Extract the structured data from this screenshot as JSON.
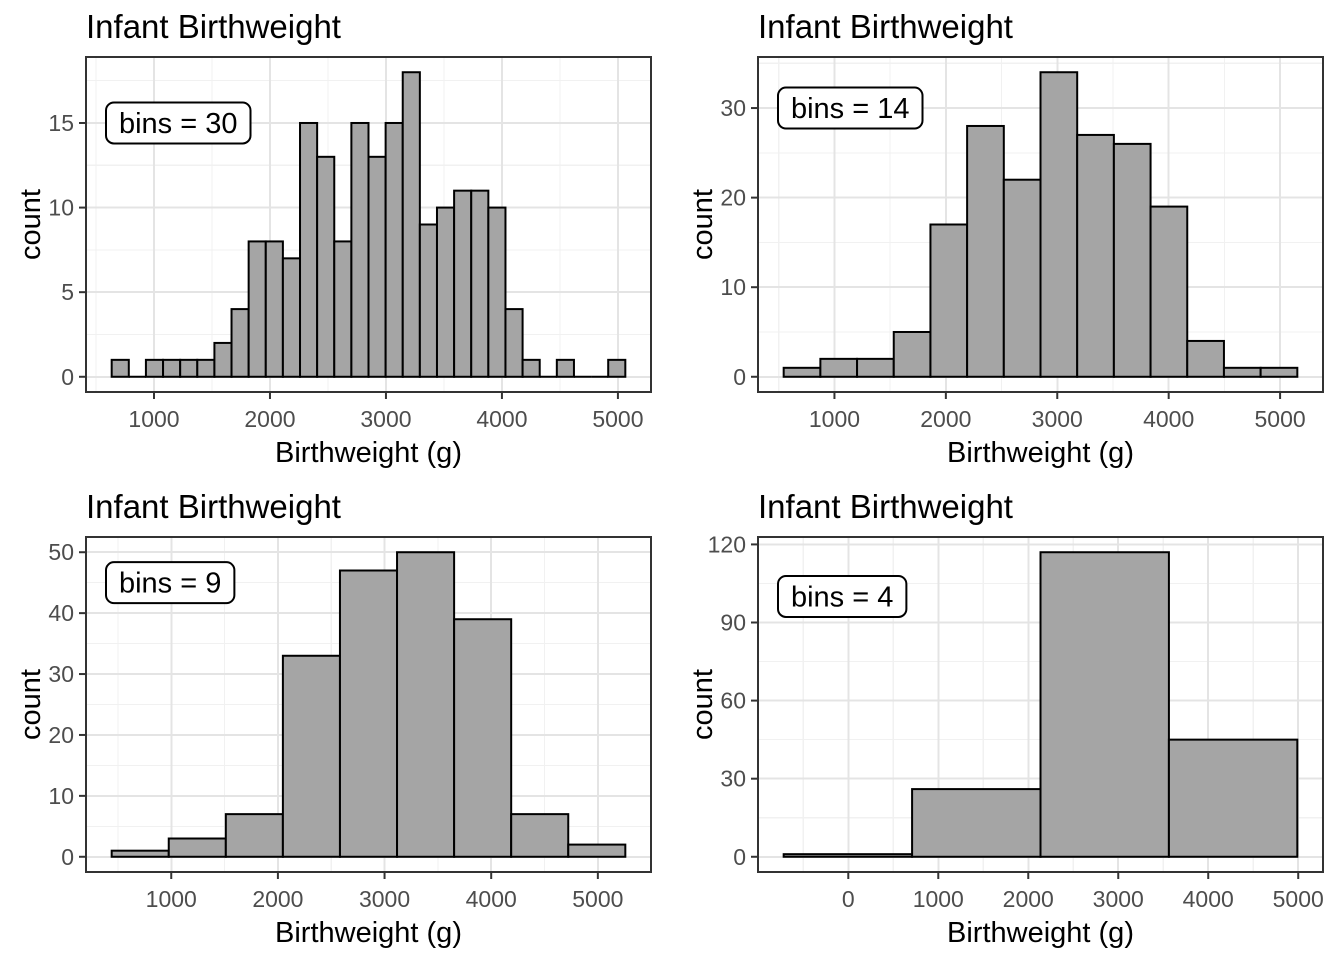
{
  "figure": {
    "background": "#FFFFFF",
    "rows": 2,
    "cols": 2
  },
  "style": {
    "bar_fill": "#A5A5A5",
    "bar_stroke": "#000000",
    "panel_background": "#FFFFFF",
    "panel_border": "#333333",
    "grid_major": "#E4E4E4",
    "grid_minor": "#F1F1F1",
    "tick_mark_color": "#333333",
    "tick_label_color": "#4D4D4D",
    "title_color": "#000000",
    "axis_title_color": "#000000",
    "annotation_text_color": "#000000",
    "annotation_box_fill": "#FFFFFF",
    "annotation_box_border": "#000000"
  },
  "chart_data": [
    {
      "type": "bar",
      "panel": "top-left",
      "title": "Infant Birthweight",
      "xlabel": "Birthweight (g)",
      "ylabel": "count",
      "annotation": {
        "label": "bins = 30",
        "y": 15
      },
      "bins": 30,
      "bin_start": 635.19,
      "bin_width": 147.621,
      "counts": [
        1,
        0,
        1,
        1,
        1,
        1,
        2,
        4,
        8,
        8,
        7,
        15,
        13,
        8,
        15,
        13,
        15,
        18,
        9,
        10,
        11,
        11,
        10,
        4,
        1,
        0,
        1,
        0,
        0,
        1
      ],
      "total_n": 189,
      "x_ticks": [
        1000,
        2000,
        3000,
        4000,
        5000
      ],
      "x_minor": [
        500,
        1500,
        2500,
        3500,
        4500
      ],
      "y_ticks": [
        0,
        5,
        10,
        15
      ],
      "y_minor": [
        2.5,
        7.5,
        12.5,
        17.5
      ],
      "ymax": 18,
      "grid": true,
      "legend": "none"
    },
    {
      "type": "bar",
      "panel": "top-right",
      "title": "Infant Birthweight",
      "xlabel": "Birthweight (g)",
      "ylabel": "count",
      "annotation": {
        "label": "bins = 14",
        "y": 30
      },
      "bins": 14,
      "bin_start": 544.35,
      "bin_width": 329.308,
      "counts": [
        1,
        2,
        2,
        5,
        17,
        28,
        22,
        34,
        27,
        26,
        19,
        4,
        1,
        1
      ],
      "total_n": 189,
      "x_ticks": [
        1000,
        2000,
        3000,
        4000,
        5000
      ],
      "x_minor": [
        500,
        1500,
        2500,
        3500,
        4500
      ],
      "y_ticks": [
        0,
        10,
        20,
        30
      ],
      "y_minor": [
        5,
        15,
        25,
        35
      ],
      "ymax": 34,
      "grid": true,
      "legend": "none"
    },
    {
      "type": "bar",
      "panel": "bottom-left",
      "title": "Infant Birthweight",
      "xlabel": "Birthweight (g)",
      "ylabel": "count",
      "annotation": {
        "label": "bins = 9",
        "y": 45
      },
      "bins": 9,
      "bin_start": 441.44,
      "bin_width": 535.125,
      "counts": [
        1,
        3,
        7,
        33,
        47,
        50,
        39,
        7,
        2
      ],
      "total_n": 189,
      "x_ticks": [
        1000,
        2000,
        3000,
        4000,
        5000
      ],
      "x_minor": [
        500,
        1500,
        2500,
        3500,
        4500
      ],
      "y_ticks": [
        0,
        10,
        20,
        30,
        40,
        50
      ],
      "y_minor": [
        5,
        15,
        25,
        35,
        45
      ],
      "ymax": 50,
      "grid": true,
      "legend": "none"
    },
    {
      "type": "bar",
      "panel": "bottom-right",
      "title": "Infant Birthweight",
      "xlabel": "Birthweight (g)",
      "ylabel": "count",
      "annotation": {
        "label": "bins = 4",
        "y": 100
      },
      "bins": 4,
      "bin_start": -718,
      "bin_width": 1427,
      "counts": [
        1,
        26,
        117,
        45
      ],
      "total_n": 189,
      "x_ticks": [
        0,
        1000,
        2000,
        3000,
        4000,
        5000
      ],
      "x_minor": [
        -500,
        500,
        1500,
        2500,
        3500,
        4500
      ],
      "y_ticks": [
        0,
        30,
        60,
        90,
        120
      ],
      "y_minor": [
        15,
        45,
        75,
        105
      ],
      "ymax": 117,
      "grid": true,
      "legend": "none"
    }
  ]
}
